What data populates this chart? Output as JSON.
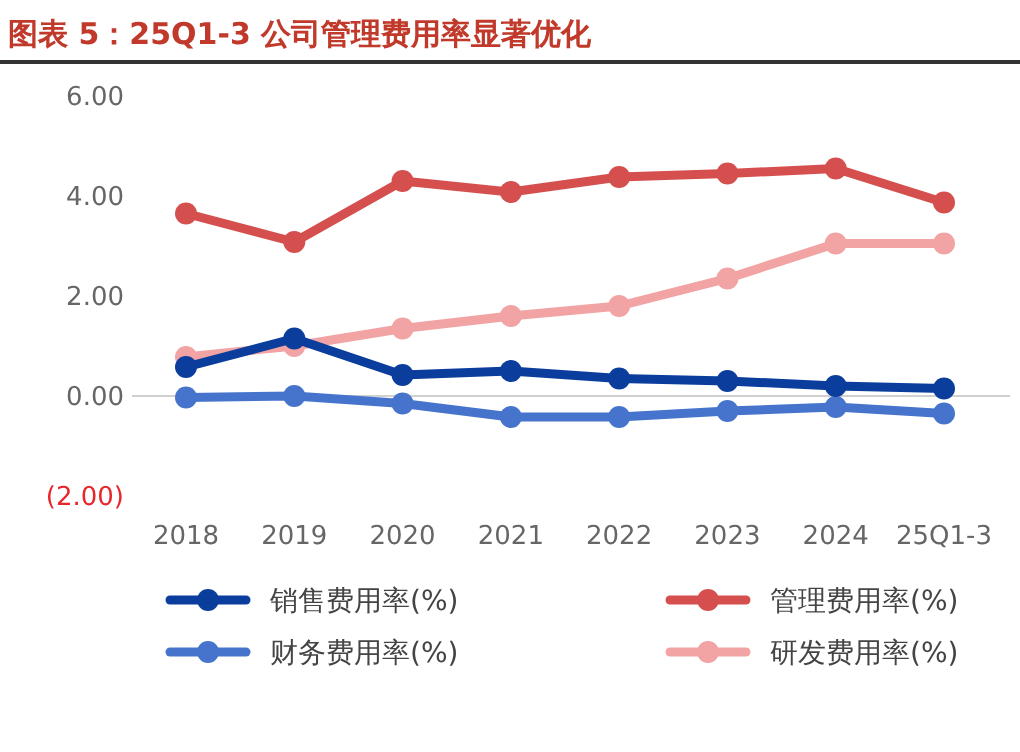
{
  "chart_data": {
    "type": "line",
    "title": "图表 5：25Q1-3 公司管理费用率显著优化",
    "categories": [
      "2018",
      "2019",
      "2020",
      "2021",
      "2022",
      "2023",
      "2024",
      "25Q1-3"
    ],
    "series": [
      {
        "name": "销售费用率(%)",
        "color": "#0a3d9c",
        "values": [
          0.58,
          1.15,
          0.42,
          0.5,
          0.35,
          0.3,
          0.2,
          0.15
        ]
      },
      {
        "name": "管理费用率(%)",
        "color": "#d44f4d",
        "values": [
          3.65,
          3.08,
          4.3,
          4.08,
          4.38,
          4.45,
          4.55,
          3.87
        ]
      },
      {
        "name": "财务费用率(%)",
        "color": "#4674cc",
        "values": [
          -0.03,
          0,
          -0.15,
          -0.42,
          -0.42,
          -0.3,
          -0.22,
          -0.35
        ]
      },
      {
        "name": "研发费用率(%)",
        "color": "#f2a3a3",
        "values": [
          0.78,
          1.0,
          1.35,
          1.6,
          1.8,
          2.35,
          3.05,
          3.05
        ]
      }
    ],
    "ylim": [
      -2,
      6
    ],
    "yticks": [
      {
        "value": -2,
        "label": "(2.00)"
      },
      {
        "value": 0,
        "label": "0.00"
      },
      {
        "value": 2,
        "label": "2.00"
      },
      {
        "value": 4,
        "label": "4.00"
      },
      {
        "value": 6,
        "label": "6.00"
      }
    ],
    "legend": "bottom",
    "marker": "circle",
    "line_style": "solid"
  }
}
